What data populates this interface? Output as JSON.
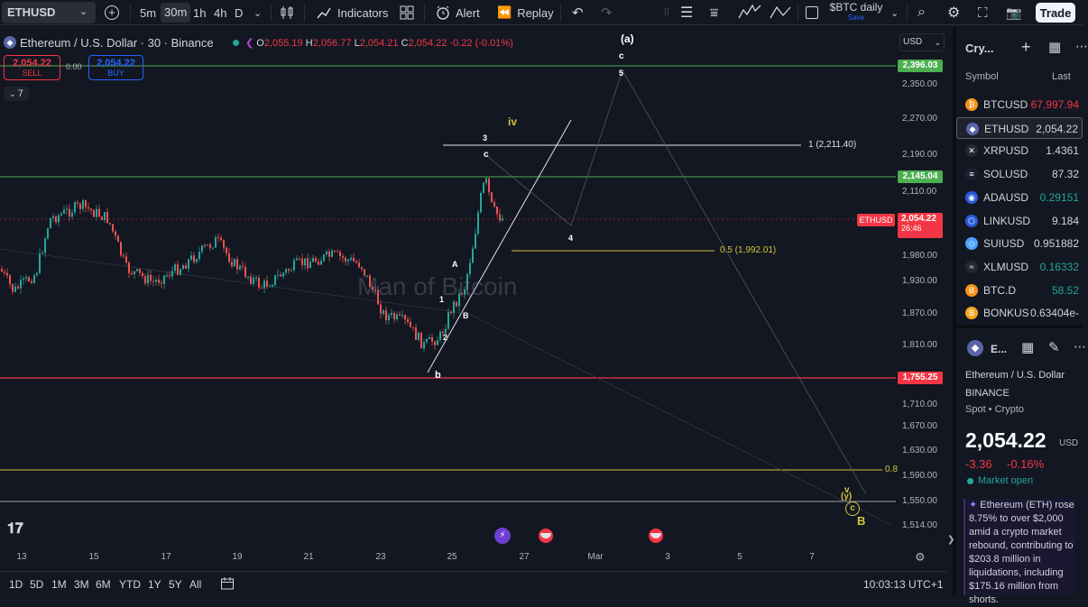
{
  "toolbar": {
    "symbol": "ETHUSD",
    "intervals": [
      "5m",
      "30m",
      "1h",
      "4h",
      "D"
    ],
    "active_interval": "30m",
    "indicators_label": "Indicators",
    "alert_label": "Alert",
    "replay_label": "Replay",
    "layout_name": "$BTC daily",
    "layout_sub": "Save",
    "trade_label": "Trade"
  },
  "chart": {
    "title": "Ethereum / U.S. Dollar · 30 · Binance",
    "ohlc": {
      "o": "2,055.19",
      "h": "2,056.77",
      "l": "2,054.21",
      "c": "2,054.22",
      "change": "-0.22 (-0.01%)"
    },
    "sell_price": "2,054.22",
    "sell_label": "SELL",
    "buy_price": "2,054.22",
    "buy_label": "BUY",
    "spread": "0.00",
    "indicators_count": "7",
    "currency": "USD",
    "watermark": "Man of Bitcoin",
    "countdown": "26:46",
    "symbol_tag": "ETHUSD",
    "last_price_badge": "2,054.22",
    "level_badges": {
      "l2396": "2,396.03",
      "l2145": "2,145.04",
      "l1755": "1,755.25"
    },
    "price_ticks": [
      "2,350.00",
      "2,270.00",
      "2,190.00",
      "2,110.00",
      "1,980.00",
      "1,930.00",
      "1,870.00",
      "1,810.00",
      "1,710.00",
      "1,670.00",
      "1,630.00",
      "1,590.00",
      "1,550.00",
      "1,514.00"
    ],
    "date_ticks": [
      "13",
      "15",
      "17",
      "19",
      "21",
      "23",
      "25",
      "27",
      "Mar",
      "3",
      "5",
      "7"
    ],
    "fib_1": "1 (2,211.40)",
    "fib_05": "0.5 (1,992.01)",
    "fib_08": "0.8",
    "wave_labels": {
      "a_paren": "(a)",
      "c_top": "c",
      "five": "5",
      "iv": "iv",
      "three": "3",
      "c_mid": "c",
      "four": "4",
      "A": "A",
      "one": "1",
      "B": "B",
      "two": "2",
      "b": "b",
      "v": "v",
      "y": "(y)",
      "c_circ": "c",
      "B_big": "B"
    },
    "colors": {
      "green_line": "#4caf50",
      "red_line": "#f23645",
      "yellow_line": "#d4c53b",
      "white_line": "#e0e3eb",
      "up_candle": "#26a69a",
      "down_candle": "#ef5350"
    }
  },
  "bottombar": {
    "ranges": [
      "1D",
      "5D",
      "1M",
      "3M",
      "6M",
      "YTD",
      "1Y",
      "5Y",
      "All"
    ],
    "clock": "10:03:13 UTC+1"
  },
  "watchlist": {
    "title": "Cry...",
    "col_symbol": "Symbol",
    "col_last": "Last",
    "rows": [
      {
        "symbol": "BTCUSD",
        "last": "67,997.94",
        "color": "#f23645",
        "coin": "₿",
        "coin_bg": "#f7931a"
      },
      {
        "symbol": "ETHUSD",
        "last": "2,054.22",
        "color": "#d1d4dc",
        "coin": "◆",
        "coin_bg": "#5a64a8"
      },
      {
        "symbol": "XRPUSD",
        "last": "1.4361",
        "color": "#d1d4dc",
        "coin": "✕",
        "coin_bg": "#23292f"
      },
      {
        "symbol": "SOLUSD",
        "last": "87.32",
        "color": "#d1d4dc",
        "coin": "≡",
        "coin_bg": "#1e1e2e"
      },
      {
        "symbol": "ADAUSD",
        "last": "0.29151",
        "color": "#26a69a",
        "coin": "◉",
        "coin_bg": "#2a5ada"
      },
      {
        "symbol": "LINKUSD",
        "last": "9.184",
        "color": "#d1d4dc",
        "coin": "⬡",
        "coin_bg": "#2a5ada"
      },
      {
        "symbol": "SUIUSD",
        "last": "0.951882",
        "color": "#d1d4dc",
        "coin": "◇",
        "coin_bg": "#4da2ff"
      },
      {
        "symbol": "XLMUSD",
        "last": "0.16332",
        "color": "#26a69a",
        "coin": "≈",
        "coin_bg": "#23292f"
      },
      {
        "symbol": "BTC.D",
        "last": "58.52",
        "color": "#26a69a",
        "coin": "B",
        "coin_bg": "#f7931a"
      },
      {
        "symbol": "BONKUS",
        "last": "0.63404e-",
        "color": "#d1d4dc",
        "coin": "B",
        "coin_bg": "#f5a623"
      }
    ]
  },
  "details": {
    "short": "E...",
    "name": "Ethereum / U.S. Dollar",
    "exchange": "BINANCE",
    "type": "Spot • Crypto",
    "price": "2,054.22",
    "currency": "USD",
    "change": "-3.36",
    "change_pct": "-0.16%",
    "status": "Market open",
    "news": "Ethereum (ETH) rose 8.75% to over $2,000 amid a crypto market rebound, contributing to $203.8 million in liquidations, including $175.16 million from shorts."
  }
}
